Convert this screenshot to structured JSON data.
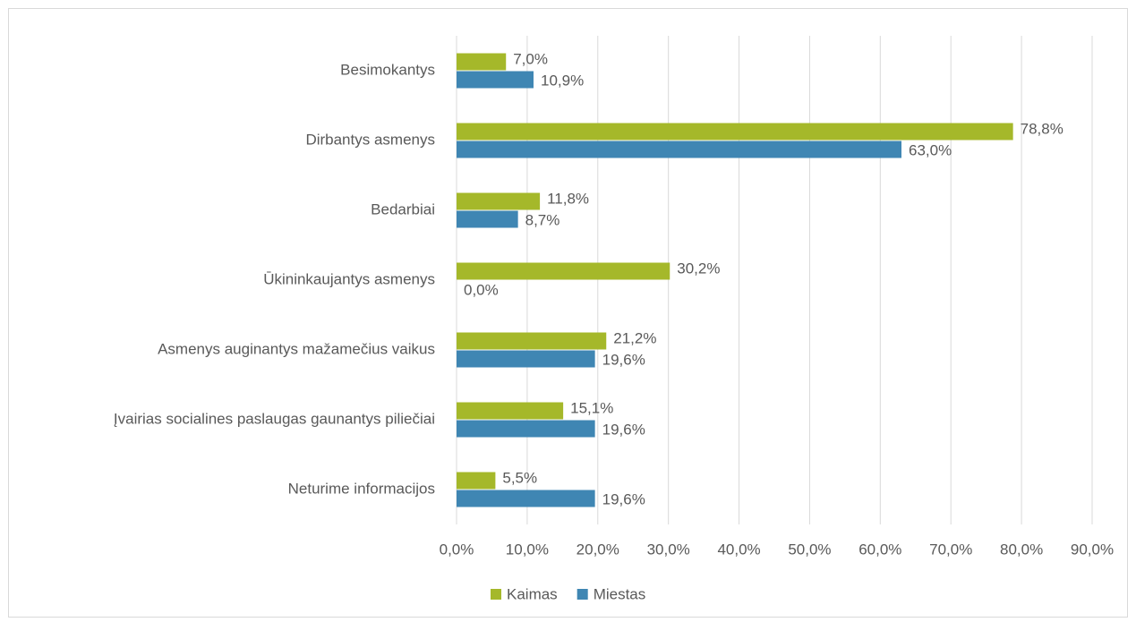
{
  "chart_data": {
    "type": "bar",
    "orientation": "horizontal",
    "categories": [
      "Besimokantys",
      "Dirbantys asmenys",
      "Bedarbiai",
      "Ūkininkaujantys asmenys",
      "Asmenys auginantys mažamečius vaikus",
      "Įvairias socialines paslaugas gaunantys piliečiai",
      "Neturime informacijos"
    ],
    "series": [
      {
        "name": "Kaimas",
        "color": "#a5b82a",
        "values": [
          7.0,
          78.8,
          11.8,
          30.2,
          21.2,
          15.1,
          5.5
        ],
        "value_labels": [
          "7,0%",
          "78,8%",
          "11,8%",
          "30,2%",
          "21,2%",
          "15,1%",
          "5,5%"
        ]
      },
      {
        "name": "Miestas",
        "color": "#3f86b3",
        "values": [
          10.9,
          63.0,
          8.7,
          0.0,
          19.6,
          19.6,
          19.6
        ],
        "value_labels": [
          "10,9%",
          "63,0%",
          "8,7%",
          "0,0%",
          "19,6%",
          "19,6%",
          "19,6%"
        ]
      }
    ],
    "xlim": [
      0,
      90
    ],
    "xticks": [
      {
        "value": 0,
        "label": "0,0%"
      },
      {
        "value": 10,
        "label": "10,0%"
      },
      {
        "value": 20,
        "label": "20,0%"
      },
      {
        "value": 30,
        "label": "30,0%"
      },
      {
        "value": 40,
        "label": "40,0%"
      },
      {
        "value": 50,
        "label": "50,0%"
      },
      {
        "value": 60,
        "label": "60,0%"
      },
      {
        "value": 70,
        "label": "70,0%"
      },
      {
        "value": 80,
        "label": "80,0%"
      },
      {
        "value": 90,
        "label": "90,0%"
      }
    ],
    "grid": true,
    "legend": "bottom"
  }
}
